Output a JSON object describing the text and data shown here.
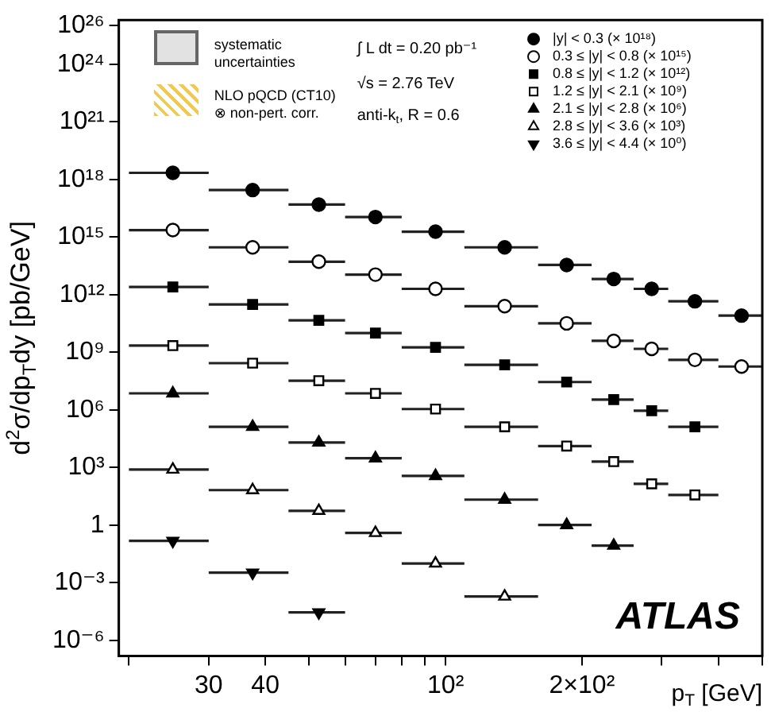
{
  "chart_data": {
    "type": "scatter",
    "xlabel": "p$_{T}$ [GeV]",
    "ylabel": "d$^{2}$σ/dp$_{T}$dy [pb/GeV]",
    "x": [
      25,
      37.5,
      52.5,
      70,
      95,
      135,
      185,
      235,
      285,
      355,
      450
    ],
    "log": "xy",
    "xlim": [
      19,
      500
    ],
    "ylim": [
      1.5e-07,
      2e+26
    ],
    "xticks": [
      {
        "value": 20,
        "label": null
      },
      30,
      40,
      {
        "value": 50,
        "label": null
      },
      {
        "value": 60,
        "label": null
      },
      {
        "value": 70,
        "label": null
      },
      {
        "value": 80,
        "label": null
      },
      {
        "value": 90,
        "label": null
      },
      {
        "value": 100,
        "label": "10²"
      },
      {
        "value": 200,
        "label": "2×10²"
      },
      {
        "value": 300,
        "label": null
      },
      {
        "value": 400,
        "label": null
      },
      {
        "value": 500,
        "label": null
      }
    ],
    "yticks": [
      {
        "value": 1e-06,
        "label": "10⁻⁶"
      },
      {
        "value": 0.001,
        "label": "10⁻³"
      },
      1,
      {
        "value": 1000.0,
        "label": "10³"
      },
      {
        "value": 1000000.0,
        "label": "10⁶"
      },
      {
        "value": 1000000000.0,
        "label": "10⁹"
      },
      {
        "value": 1000000000000.0,
        "label": "10¹²"
      },
      {
        "value": 1000000000000000.0,
        "label": "10¹⁵"
      },
      {
        "value": 1e+18,
        "label": "10¹⁸"
      },
      {
        "value": 1e+21,
        "label": "10²¹"
      },
      {
        "value": 1e+24,
        "label": "10²⁴"
      },
      {
        "value": 1e+26,
        "label": "10²⁶"
      }
    ],
    "grid": false,
    "legend": "top right",
    "series": [
      {
        "name": "|y| < 0.3 (× 10¹⁸)",
        "color": "#000000",
        "marker": "circle",
        "values": [
          2.2e+18,
          2.8e+17,
          4.9e+16,
          1.1e+16,
          1900000000000000.0,
          290000000000000.0,
          35000000000000.0,
          6500000000000.0,
          2000000000000.0,
          450000000000.0,
          81000000000.0
        ],
        "xerrors": [
          5,
          7.5,
          7.5,
          10,
          15,
          25,
          25,
          25,
          25,
          45,
          50
        ]
      },
      {
        "name": "0.3 ≤ |y| < 0.8 (× 10¹⁵)",
        "color": "#ffffff",
        "marker": "circle",
        "values": [
          2300000000000000.0,
          290000000000000.0,
          52000000000000.0,
          11000000000000.0,
          2000000000000.0,
          250000000000.0,
          32000000000.0,
          3900000000.0,
          1500000000.0,
          400000000.0,
          180000000.0
        ],
        "xerrors": [
          5,
          7.5,
          7.5,
          10,
          15,
          25,
          25,
          25,
          25,
          45,
          50
        ]
      },
      {
        "name": "0.8 ≤ |y| < 1.2 (× 10¹²)",
        "color": "#000000",
        "marker": "square",
        "values": [
          2500000000000.0,
          310000000000.0,
          46000000000.0,
          10000000000.0,
          1800000000.0,
          220000000.0,
          28000000.0,
          3400000.0,
          890000.0,
          130000.0,
          null
        ],
        "xerrors": [
          5,
          7.5,
          7.5,
          10,
          15,
          25,
          25,
          25,
          25,
          45,
          null
        ]
      },
      {
        "name": "1.2 ≤ |y| < 2.1 (× 10⁹)",
        "color": "#ffffff",
        "marker": "square",
        "values": [
          2200000000.0,
          270000000.0,
          33000000.0,
          7200000.0,
          1100000.0,
          130000.0,
          13000.0,
          2000.0,
          140.0,
          37,
          null
        ],
        "xerrors": [
          5,
          7.5,
          7.5,
          10,
          15,
          25,
          25,
          25,
          25,
          45,
          null
        ]
      },
      {
        "name": "2.1 ≤ |y| < 2.8 (× 10⁶)",
        "color": "#000000",
        "marker": "triangle",
        "values": [
          7200000.0,
          130000.0,
          20000.0,
          3000.0,
          360.0,
          21,
          1.0,
          0.085,
          null,
          null,
          null
        ],
        "xerrors": [
          5,
          7.5,
          7.5,
          10,
          15,
          25,
          25,
          25,
          null,
          null,
          null
        ]
      },
      {
        "name": "2.8 ≤ |y| < 3.6 (× 10³)",
        "color": "#ffffff",
        "marker": "triangle",
        "values": [
          780.0,
          66,
          5.5,
          0.39,
          0.01,
          0.00019,
          null,
          null,
          null,
          null,
          null
        ],
        "xerrors": [
          5,
          7.5,
          7.5,
          10,
          15,
          25,
          null,
          null,
          null,
          null,
          null
        ]
      },
      {
        "name": "3.6 ≤ |y| < 4.4 (× 10⁰)",
        "color": "#000000",
        "marker": "triangle-down",
        "values": [
          0.15,
          0.0033,
          2.8e-05,
          null,
          null,
          null,
          null,
          null,
          null,
          null,
          null
        ],
        "xerrors": [
          5,
          7.5,
          7.5,
          null,
          null,
          null,
          null,
          null,
          null,
          null,
          null
        ]
      }
    ],
    "annotations": [
      "systematic uncertainties",
      "NLO pQCD (CT10) ⊗ non-pert. corr.",
      "∫ L dt = 0.20 pb⁻¹",
      "√s = 2.76 TeV",
      "anti-k$_{t}$, R = 0.6",
      "ATLAS"
    ]
  }
}
